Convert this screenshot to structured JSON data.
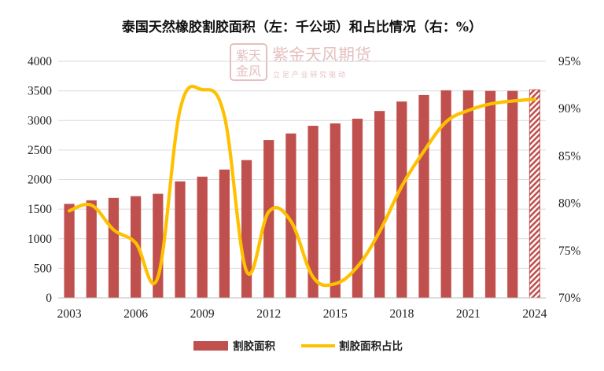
{
  "chart_data": {
    "type": "bar",
    "title": "泰国天然橡胶割胶面积（左：千公顷）和占比情况（右：%）",
    "categories": [
      "2003",
      "2004",
      "2005",
      "2006",
      "2007",
      "2008",
      "2009",
      "2010",
      "2011",
      "2012",
      "2013",
      "2014",
      "2015",
      "2016",
      "2017",
      "2018",
      "2019",
      "2020",
      "2021",
      "2022",
      "2023",
      "2024"
    ],
    "x_tick_labels": [
      "2003",
      "2006",
      "2009",
      "2012",
      "2015",
      "2018",
      "2021",
      "2024"
    ],
    "series": [
      {
        "name": "割胶面积",
        "kind": "bar",
        "axis": "left",
        "color": "#c0504d",
        "values": [
          1590,
          1650,
          1690,
          1720,
          1760,
          1970,
          2050,
          2170,
          2330,
          2670,
          2780,
          2910,
          2950,
          3030,
          3160,
          3320,
          3430,
          3510,
          3510,
          3500,
          3500,
          3520
        ],
        "hatched_last": true
      },
      {
        "name": "割胶面积占比",
        "kind": "line",
        "axis": "right",
        "color": "#ffc000",
        "values": [
          79.2,
          79.8,
          77.2,
          75.8,
          72.2,
          89.9,
          92.0,
          89.2,
          72.8,
          79.1,
          78.1,
          72.2,
          71.5,
          73.3,
          77.0,
          81.8,
          85.5,
          88.6,
          89.8,
          90.5,
          90.8,
          91.0
        ]
      }
    ],
    "y_left": {
      "min": 0,
      "max": 4000,
      "step": 500,
      "ticks": [
        "0",
        "500",
        "1000",
        "1500",
        "2000",
        "2500",
        "3000",
        "3500",
        "4000"
      ]
    },
    "y_right": {
      "min": 70,
      "max": 95,
      "step": 5,
      "ticks": [
        "70%",
        "75%",
        "80%",
        "85%",
        "90%",
        "95%"
      ]
    },
    "grid": true,
    "legend_position": "bottom"
  },
  "watermark": {
    "logo_text": "紫金天风",
    "name": "紫金天风期货",
    "slogan": "立 足 产 业   研 究 驱 动"
  },
  "colors": {
    "bar": "#c0504d",
    "line": "#ffc000",
    "grid": "#d9d9d9"
  }
}
